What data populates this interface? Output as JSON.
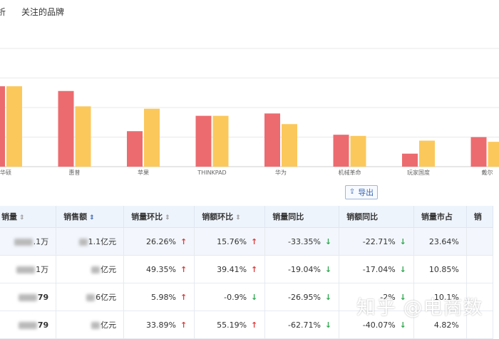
{
  "tabs": [
    "析",
    "关注的品牌"
  ],
  "colors": {
    "series_a": "#ec6b6f",
    "series_b": "#fbc85c",
    "grid": "#e9e9e9",
    "up": "#e03b3b",
    "down": "#2fa84f"
  },
  "chart_data": {
    "type": "bar",
    "categories": [
      "华硕",
      "惠普",
      "苹果",
      "THINKPAD",
      "华为",
      "机械革命",
      "玩家国度",
      "戴尔"
    ],
    "series": [
      {
        "values": [
          68,
          64,
          30,
          43,
          45,
          27,
          11,
          25
        ]
      },
      {
        "values": [
          68,
          51,
          49,
          43,
          36,
          26,
          22,
          21
        ]
      }
    ],
    "ylim": [
      0,
      100
    ],
    "grid": true
  },
  "export_label": "导出",
  "table": {
    "headers": [
      "销量",
      "销售额",
      "销量环比",
      "销额环比",
      "销量同比",
      "销额同比",
      "销量市占",
      "销"
    ],
    "rows": [
      {
        "sales": ".1万",
        "amount": "1.1亿元",
        "sales_mom": "26.26%",
        "sales_mom_dir": "up",
        "amount_mom": "15.76%",
        "amount_mom_dir": "up",
        "sales_yoy": "-33.35%",
        "sales_yoy_dir": "down",
        "amount_yoy": "-22.71%",
        "amount_yoy_dir": "down",
        "share": "23.64%"
      },
      {
        "sales": "1万",
        "amount": "亿元",
        "sales_mom": "49.35%",
        "sales_mom_dir": "up",
        "amount_mom": "39.41%",
        "amount_mom_dir": "up",
        "sales_yoy": "-19.04%",
        "sales_yoy_dir": "down",
        "amount_yoy": "-17.04%",
        "amount_yoy_dir": "down",
        "share": "10.85%"
      },
      {
        "sales": "79",
        "amount": "6亿元",
        "sales_mom": "5.98%",
        "sales_mom_dir": "up",
        "amount_mom": "-0.9%",
        "amount_mom_dir": "down",
        "sales_yoy": "-26.95%",
        "sales_yoy_dir": "down",
        "amount_yoy": "-2%",
        "amount_yoy_dir": "down",
        "share": "10.1%"
      },
      {
        "sales": "79",
        "amount": "亿元",
        "sales_mom": "33.89%",
        "sales_mom_dir": "up",
        "amount_mom": "55.19%",
        "amount_mom_dir": "up",
        "sales_yoy": "-62.71%",
        "sales_yoy_dir": "down",
        "amount_yoy": "-40.07%",
        "amount_yoy_dir": "down",
        "share": "4.82%"
      }
    ]
  },
  "watermark": "知乎 @电商数"
}
